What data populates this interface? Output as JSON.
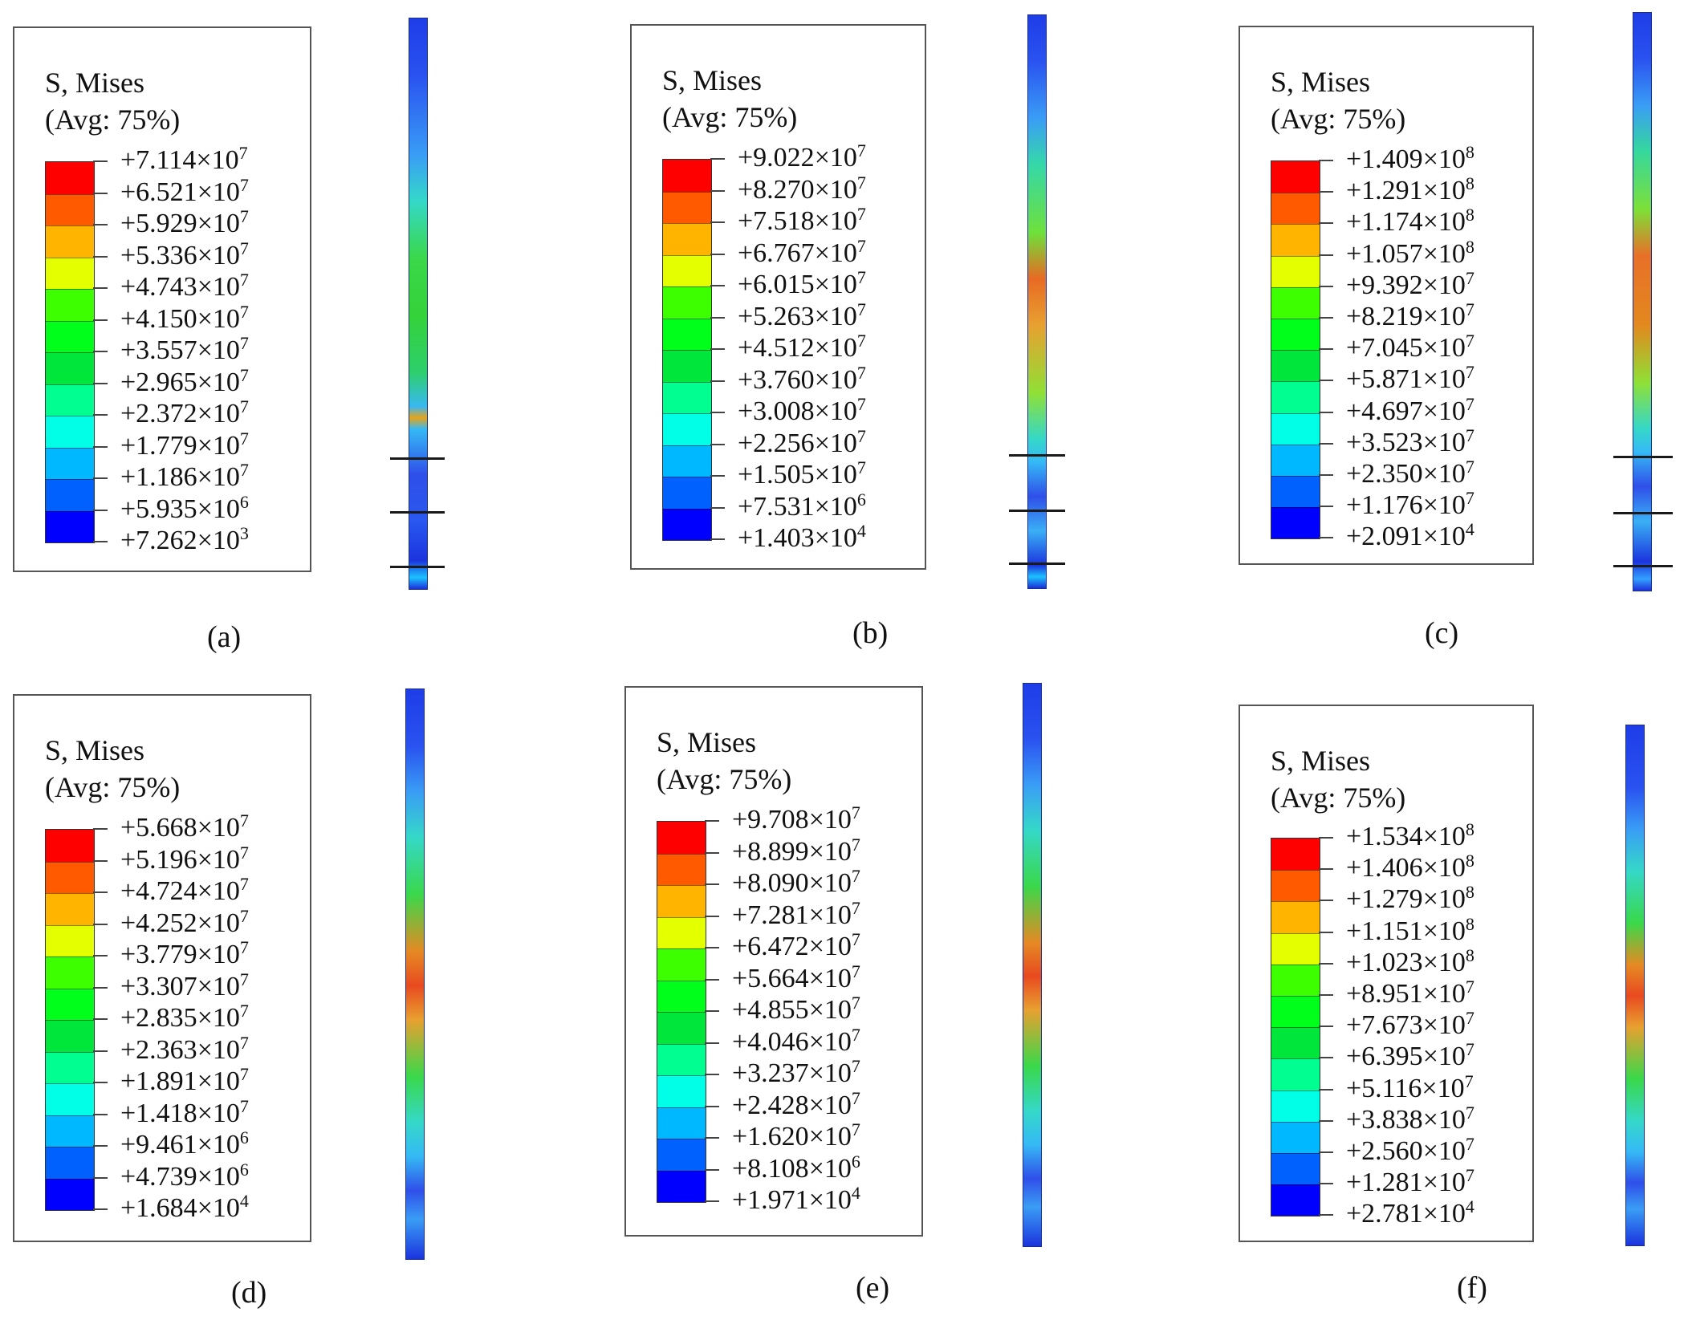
{
  "colors": {
    "scale": [
      "#ff0000",
      "#ff5a00",
      "#ffb400",
      "#e4ff00",
      "#3dff00",
      "#00ff1a",
      "#00e63a",
      "#00ff90",
      "#00ffe6",
      "#00b8ff",
      "#0061ff",
      "#0000ff"
    ],
    "bar_edge": "#1b2e8a",
    "bar_blue": "#2a3fe0",
    "bar_cyan": "#34b7ff",
    "bar_green": "#28d83a",
    "bar_red": "#e53a1e"
  },
  "panels": [
    {
      "id": "a",
      "title": "S, Mises",
      "avg": "(Avg: 75%)",
      "caption": "(a)",
      "values": [
        {
          "m": "+7.114",
          "x": "×10",
          "e": "7"
        },
        {
          "m": "+6.521",
          "x": "×10",
          "e": "7"
        },
        {
          "m": "+5.929",
          "x": "×10",
          "e": "7"
        },
        {
          "m": "+5.336",
          "x": "×10",
          "e": "7"
        },
        {
          "m": "+4.743",
          "x": "×10",
          "e": "7"
        },
        {
          "m": "+4.150",
          "x": "×10",
          "e": "7"
        },
        {
          "m": "+3.557",
          "x": "×10",
          "e": "7"
        },
        {
          "m": "+2.965",
          "x": "×10",
          "e": "7"
        },
        {
          "m": "+2.372",
          "x": "×10",
          "e": "7"
        },
        {
          "m": "+1.779",
          "x": "×10",
          "e": "7"
        },
        {
          "m": "+1.186",
          "x": "×10",
          "e": "7"
        },
        {
          "m": "+5.935",
          "x": "×10",
          "e": "6"
        },
        {
          "m": "+7.262",
          "x": "×10",
          "e": "3"
        }
      ]
    },
    {
      "id": "b",
      "title": "S, Mises",
      "avg": "(Avg: 75%)",
      "caption": "(b)",
      "values": [
        {
          "m": "+9.022",
          "x": "×10",
          "e": "7"
        },
        {
          "m": "+8.270",
          "x": "×10",
          "e": "7"
        },
        {
          "m": "+7.518",
          "x": "×10",
          "e": "7"
        },
        {
          "m": "+6.767",
          "x": "×10",
          "e": "7"
        },
        {
          "m": "+6.015",
          "x": "×10",
          "e": "7"
        },
        {
          "m": "+5.263",
          "x": "×10",
          "e": "7"
        },
        {
          "m": "+4.512",
          "x": "×10",
          "e": "7"
        },
        {
          "m": "+3.760",
          "x": "×10",
          "e": "7"
        },
        {
          "m": "+3.008",
          "x": "×10",
          "e": "7"
        },
        {
          "m": "+2.256",
          "x": "×10",
          "e": "7"
        },
        {
          "m": "+1.505",
          "x": "×10",
          "e": "7"
        },
        {
          "m": "+7.531",
          "x": "×10",
          "e": "6"
        },
        {
          "m": "+1.403",
          "x": "×10",
          "e": "4"
        }
      ]
    },
    {
      "id": "c",
      "title": "S, Mises",
      "avg": "(Avg: 75%)",
      "caption": "(c)",
      "values": [
        {
          "m": "+1.409",
          "x": "×10",
          "e": "8"
        },
        {
          "m": "+1.291",
          "x": "×10",
          "e": "8"
        },
        {
          "m": "+1.174",
          "x": "×10",
          "e": "8"
        },
        {
          "m": "+1.057",
          "x": "×10",
          "e": "8"
        },
        {
          "m": "+9.392",
          "x": "×10",
          "e": "7"
        },
        {
          "m": "+8.219",
          "x": "×10",
          "e": "7"
        },
        {
          "m": "+7.045",
          "x": "×10",
          "e": "7"
        },
        {
          "m": "+5.871",
          "x": "×10",
          "e": "7"
        },
        {
          "m": "+4.697",
          "x": "×10",
          "e": "7"
        },
        {
          "m": "+3.523",
          "x": "×10",
          "e": "7"
        },
        {
          "m": "+2.350",
          "x": "×10",
          "e": "7"
        },
        {
          "m": "+1.176",
          "x": "×10",
          "e": "7"
        },
        {
          "m": "+2.091",
          "x": "×10",
          "e": "4"
        }
      ]
    },
    {
      "id": "d",
      "title": "S, Mises",
      "avg": "(Avg: 75%)",
      "caption": "(d)",
      "values": [
        {
          "m": "+5.668",
          "x": "×10",
          "e": "7"
        },
        {
          "m": "+5.196",
          "x": "×10",
          "e": "7"
        },
        {
          "m": "+4.724",
          "x": "×10",
          "e": "7"
        },
        {
          "m": "+4.252",
          "x": "×10",
          "e": "7"
        },
        {
          "m": "+3.779",
          "x": "×10",
          "e": "7"
        },
        {
          "m": "+3.307",
          "x": "×10",
          "e": "7"
        },
        {
          "m": "+2.835",
          "x": "×10",
          "e": "7"
        },
        {
          "m": "+2.363",
          "x": "×10",
          "e": "7"
        },
        {
          "m": "+1.891",
          "x": "×10",
          "e": "7"
        },
        {
          "m": "+1.418",
          "x": "×10",
          "e": "7"
        },
        {
          "m": "+9.461",
          "x": "×10",
          "e": "6"
        },
        {
          "m": "+4.739",
          "x": "×10",
          "e": "6"
        },
        {
          "m": "+1.684",
          "x": "×10",
          "e": "4"
        }
      ]
    },
    {
      "id": "e",
      "title": "S, Mises",
      "avg": "(Avg: 75%)",
      "caption": "(e)",
      "values": [
        {
          "m": "+9.708",
          "x": "×10",
          "e": "7"
        },
        {
          "m": "+8.899",
          "x": "×10",
          "e": "7"
        },
        {
          "m": "+8.090",
          "x": "×10",
          "e": "7"
        },
        {
          "m": "+7.281",
          "x": "×10",
          "e": "7"
        },
        {
          "m": "+6.472",
          "x": "×10",
          "e": "7"
        },
        {
          "m": "+5.664",
          "x": "×10",
          "e": "7"
        },
        {
          "m": "+4.855",
          "x": "×10",
          "e": "7"
        },
        {
          "m": "+4.046",
          "x": "×10",
          "e": "7"
        },
        {
          "m": "+3.237",
          "x": "×10",
          "e": "7"
        },
        {
          "m": "+2.428",
          "x": "×10",
          "e": "7"
        },
        {
          "m": "+1.620",
          "x": "×10",
          "e": "7"
        },
        {
          "m": "+8.108",
          "x": "×10",
          "e": "6"
        },
        {
          "m": "+1.971",
          "x": "×10",
          "e": "4"
        }
      ]
    },
    {
      "id": "f",
      "title": "S, Mises",
      "avg": "(Avg: 75%)",
      "caption": "(f)",
      "values": [
        {
          "m": "+1.534",
          "x": "×10",
          "e": "8"
        },
        {
          "m": "+1.406",
          "x": "×10",
          "e": "8"
        },
        {
          "m": "+1.279",
          "x": "×10",
          "e": "8"
        },
        {
          "m": "+1.151",
          "x": "×10",
          "e": "8"
        },
        {
          "m": "+1.023",
          "x": "×10",
          "e": "8"
        },
        {
          "m": "+8.951",
          "x": "×10",
          "e": "7"
        },
        {
          "m": "+7.673",
          "x": "×10",
          "e": "7"
        },
        {
          "m": "+6.395",
          "x": "×10",
          "e": "7"
        },
        {
          "m": "+5.116",
          "x": "×10",
          "e": "7"
        },
        {
          "m": "+3.838",
          "x": "×10",
          "e": "7"
        },
        {
          "m": "+2.560",
          "x": "×10",
          "e": "7"
        },
        {
          "m": "+1.281",
          "x": "×10",
          "e": "7"
        },
        {
          "m": "+2.781",
          "x": "×10",
          "e": "4"
        }
      ]
    }
  ]
}
